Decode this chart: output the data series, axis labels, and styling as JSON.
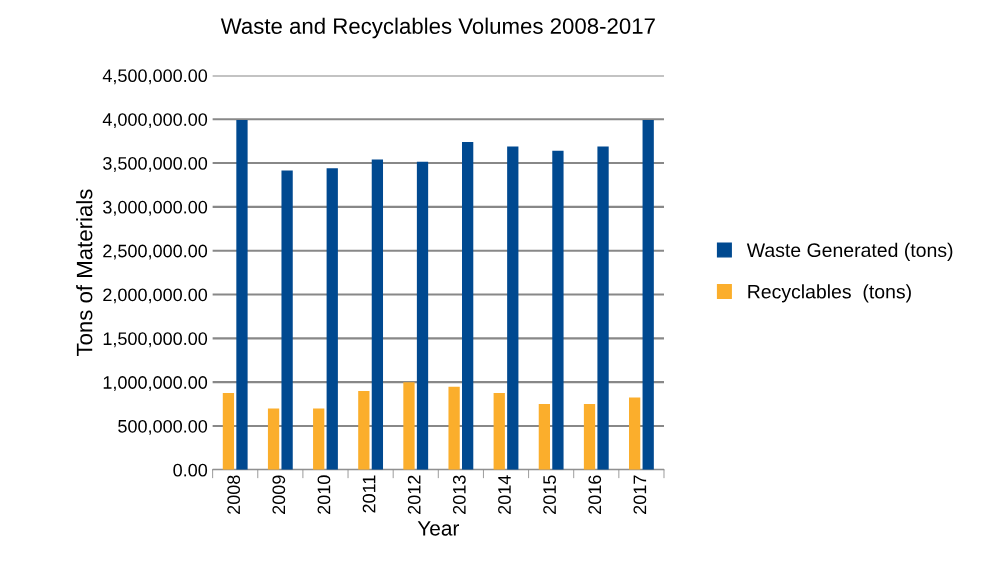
{
  "chart_data": {
    "type": "bar",
    "title": "Waste and Recyclables Volumes 2008-2017",
    "xlabel": "Year",
    "ylabel": "Tons of Materials",
    "categories": [
      "2008",
      "2009",
      "2010",
      "2011",
      "2012",
      "2013",
      "2014",
      "2015",
      "2016",
      "2017"
    ],
    "series": [
      {
        "name": "Recyclables  (tons)",
        "color": "#fbae2c",
        "values": [
          875000,
          700000,
          700000,
          900000,
          1000000,
          947000,
          875000,
          750000,
          750000,
          825000
        ]
      },
      {
        "name": "Waste Generated (tons)",
        "color": "#004990",
        "values": [
          3990000,
          3415000,
          3440000,
          3540000,
          3515000,
          3740000,
          3690000,
          3640000,
          3690000,
          3990000
        ]
      }
    ],
    "ylim": [
      0,
      4500000
    ],
    "yticks": [
      {
        "value": 0,
        "label": "0.00"
      },
      {
        "value": 500000,
        "label": "500,000.00"
      },
      {
        "value": 1000000,
        "label": "1,000,000.00"
      },
      {
        "value": 1500000,
        "label": "1,500,000.00"
      },
      {
        "value": 2000000,
        "label": "2,000,000.00"
      },
      {
        "value": 2500000,
        "label": "2,500,000.00"
      },
      {
        "value": 3000000,
        "label": "3,000,000.00"
      },
      {
        "value": 3500000,
        "label": "3,500,000.00"
      },
      {
        "value": 4000000,
        "label": "4,000,000.00"
      },
      {
        "value": 4500000,
        "label": "4,500,000.00"
      }
    ],
    "grid": "y",
    "legend": "right"
  }
}
